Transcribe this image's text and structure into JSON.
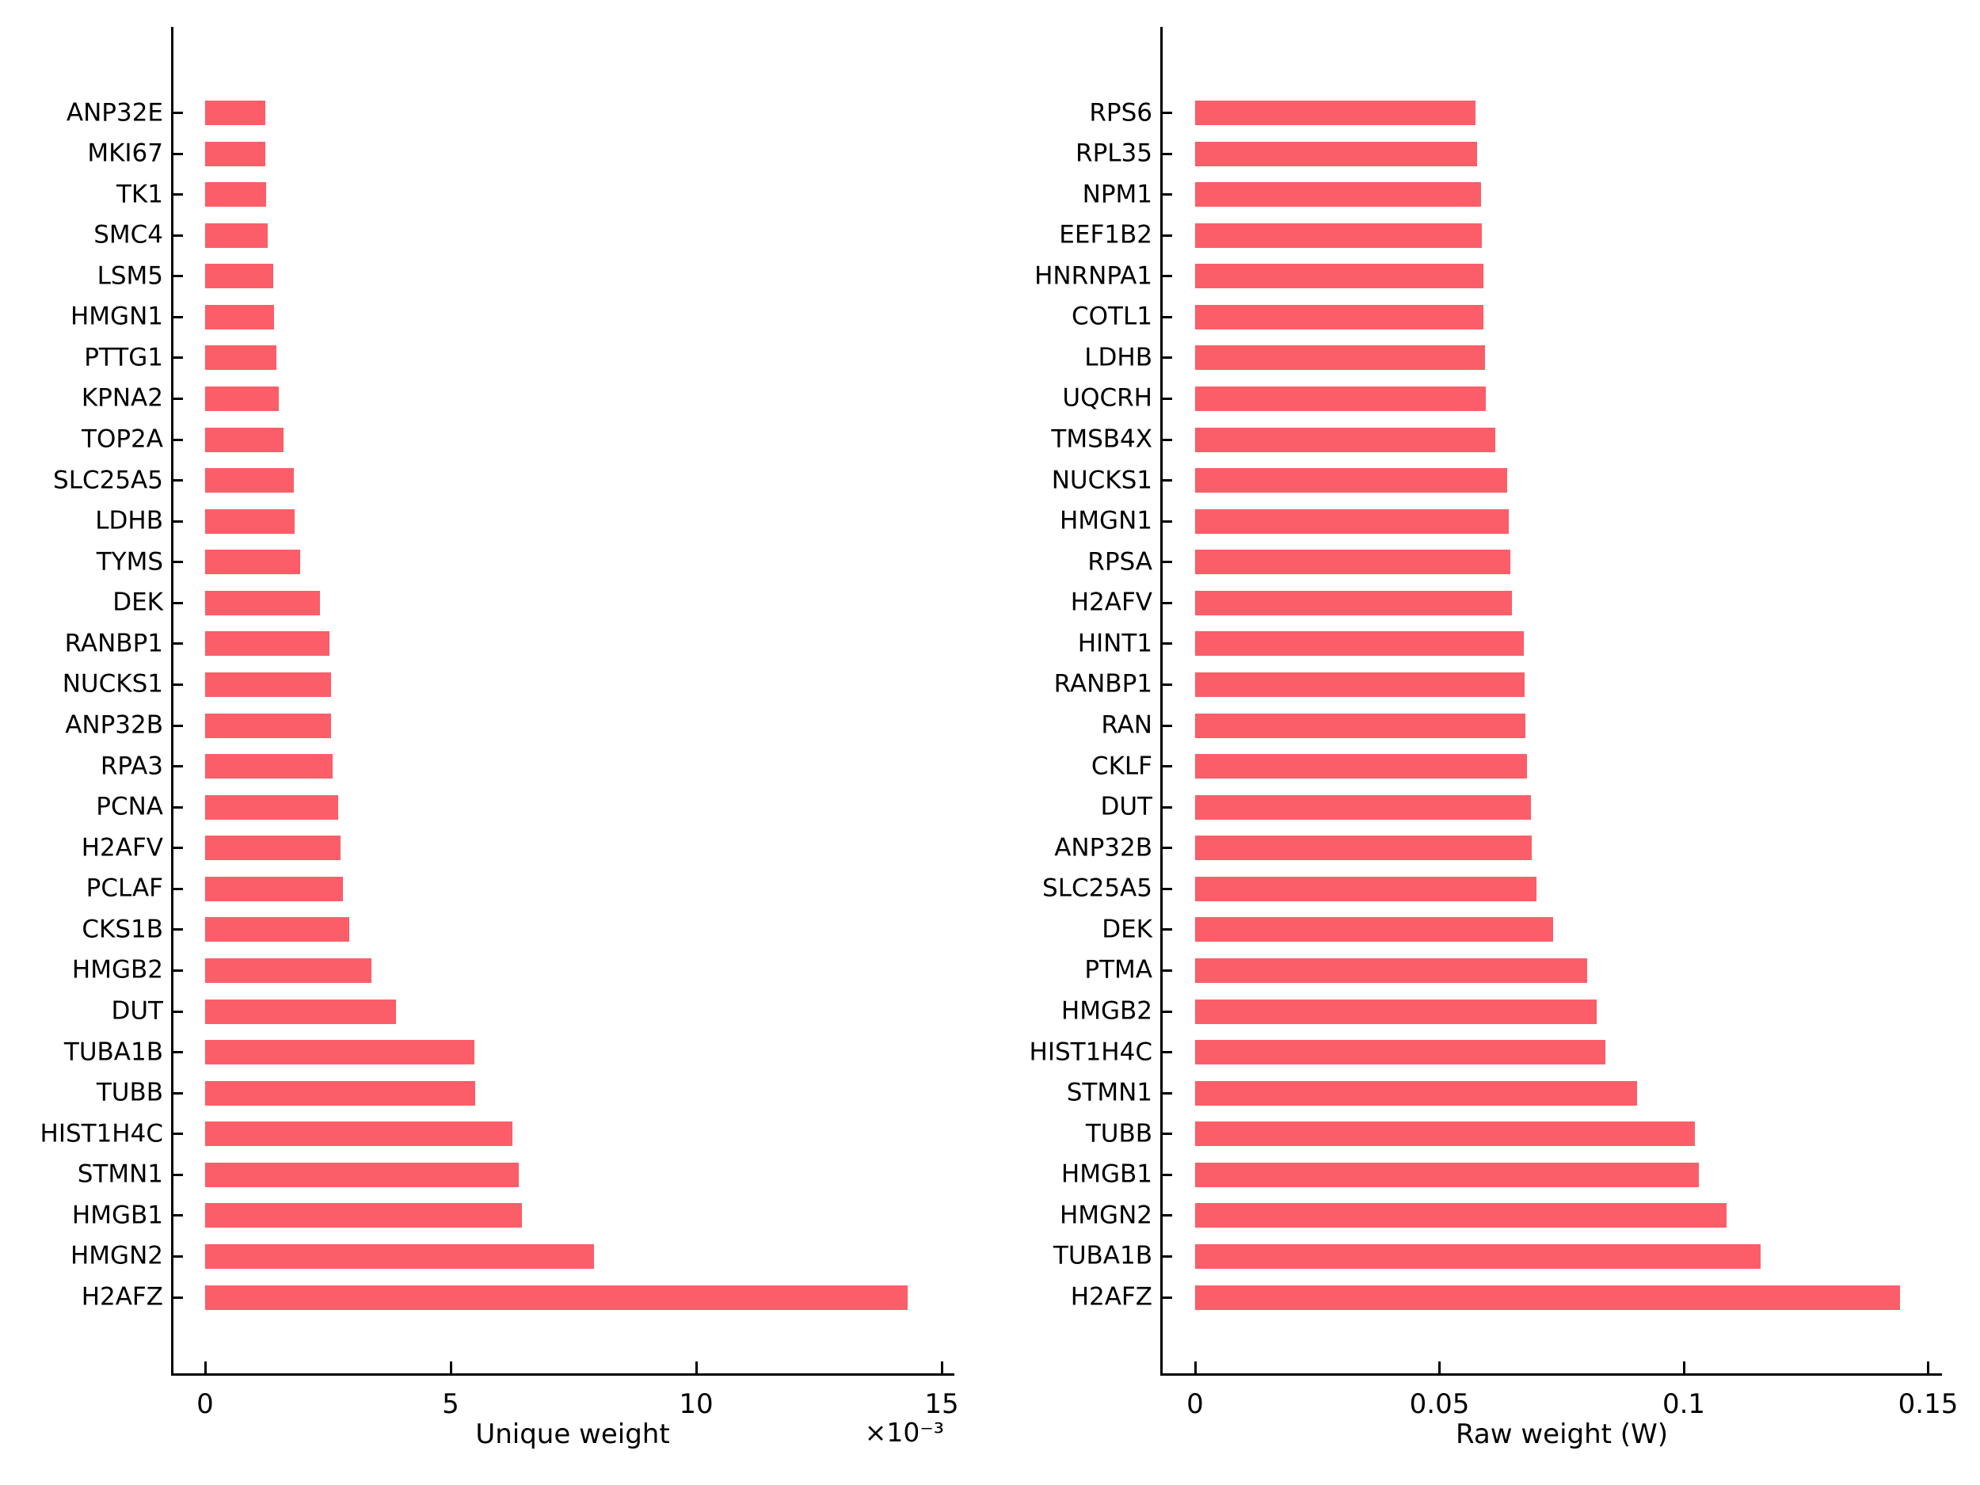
{
  "page": {
    "background": "#ffffff"
  },
  "style": {
    "bar_color": "#fb5e69",
    "axis_color": "#000000",
    "text_color": "#000000"
  },
  "chart_data": [
    {
      "type": "bar",
      "orientation": "horizontal",
      "title": "",
      "xlabel": "Unique weight",
      "offset_text": "×10⁻³",
      "grid": false,
      "categories": [
        "ANP32E",
        "MKI67",
        "TK1",
        "SMC4",
        "LSM5",
        "HMGN1",
        "PTTG1",
        "KPNA2",
        "TOP2A",
        "SLC25A5",
        "LDHB",
        "TYMS",
        "DEK",
        "RANBP1",
        "NUCKS1",
        "ANP32B",
        "RPA3",
        "PCNA",
        "H2AFV",
        "PCLAF",
        "CKS1B",
        "HMGB2",
        "DUT",
        "TUBA1B",
        "TUBB",
        "HIST1H4C",
        "STMN1",
        "HMGB1",
        "HMGN2",
        "H2AFZ"
      ],
      "values": [
        1.22,
        1.23,
        1.24,
        1.28,
        1.39,
        1.41,
        1.45,
        1.5,
        1.6,
        1.81,
        1.82,
        1.94,
        2.34,
        2.53,
        2.56,
        2.57,
        2.6,
        2.71,
        2.75,
        2.81,
        2.94,
        3.39,
        3.88,
        5.48,
        5.5,
        6.26,
        6.39,
        6.45,
        7.92,
        14.3
      ],
      "xticks": [
        0,
        5,
        10,
        15
      ],
      "xtick_labels": [
        "0",
        "5",
        "10",
        "15"
      ],
      "xlim": [
        0,
        15
      ]
    },
    {
      "type": "bar",
      "orientation": "horizontal",
      "title": "",
      "xlabel": "Raw weight (W)",
      "offset_text": "",
      "grid": false,
      "categories": [
        "RPS6",
        "RPL35",
        "NPM1",
        "EEF1B2",
        "HNRNPA1",
        "COTL1",
        "LDHB",
        "UQCRH",
        "TMSB4X",
        "NUCKS1",
        "HMGN1",
        "RPSA",
        "H2AFV",
        "HINT1",
        "RANBP1",
        "RAN",
        "CKLF",
        "DUT",
        "ANP32B",
        "SLC25A5",
        "DEK",
        "PTMA",
        "HMGB2",
        "HIST1H4C",
        "STMN1",
        "TUBB",
        "HMGB1",
        "HMGN2",
        "TUBA1B",
        "H2AFZ"
      ],
      "values": [
        0.0574,
        0.0577,
        0.0585,
        0.0587,
        0.059,
        0.059,
        0.0593,
        0.0595,
        0.0614,
        0.0639,
        0.0642,
        0.0645,
        0.0648,
        0.0672,
        0.0674,
        0.0676,
        0.0679,
        0.0687,
        0.0689,
        0.0699,
        0.0733,
        0.0802,
        0.0822,
        0.084,
        0.0905,
        0.1023,
        0.1031,
        0.1088,
        0.1157,
        0.1443
      ],
      "xticks": [
        0,
        0.05,
        0.1,
        0.15
      ],
      "xtick_labels": [
        "0",
        "0.05",
        "0.1",
        "0.15"
      ],
      "xlim": [
        0,
        0.15
      ]
    }
  ]
}
